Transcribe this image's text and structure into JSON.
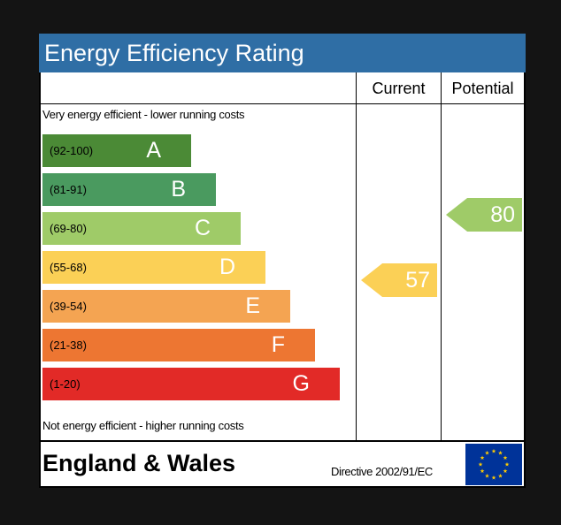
{
  "chart_data": {
    "type": "bar",
    "title": "Energy Efficiency Rating",
    "columns": [
      "Current",
      "Potential"
    ],
    "top_note": "Very energy efficient - lower running costs",
    "bottom_note": "Not energy efficient - higher running costs",
    "bands": [
      {
        "range": "(92-100)",
        "letter": "A",
        "color": "#4b8a36"
      },
      {
        "range": "(81-91)",
        "letter": "B",
        "color": "#4a9a5f"
      },
      {
        "range": "(69-80)",
        "letter": "C",
        "color": "#9fcb68"
      },
      {
        "range": "(55-68)",
        "letter": "D",
        "color": "#fbd056"
      },
      {
        "range": "(39-54)",
        "letter": "E",
        "color": "#f4a452"
      },
      {
        "range": "(21-38)",
        "letter": "F",
        "color": "#ed7632"
      },
      {
        "range": "(1-20)",
        "letter": "G",
        "color": "#e22a27"
      }
    ],
    "current": {
      "value": 57,
      "band": "D",
      "color": "#fbd056"
    },
    "potential": {
      "value": 80,
      "band": "C",
      "color": "#9fcb68"
    }
  },
  "footer": {
    "country": "England & Wales",
    "directive": "Directive 2002/91/EC"
  }
}
